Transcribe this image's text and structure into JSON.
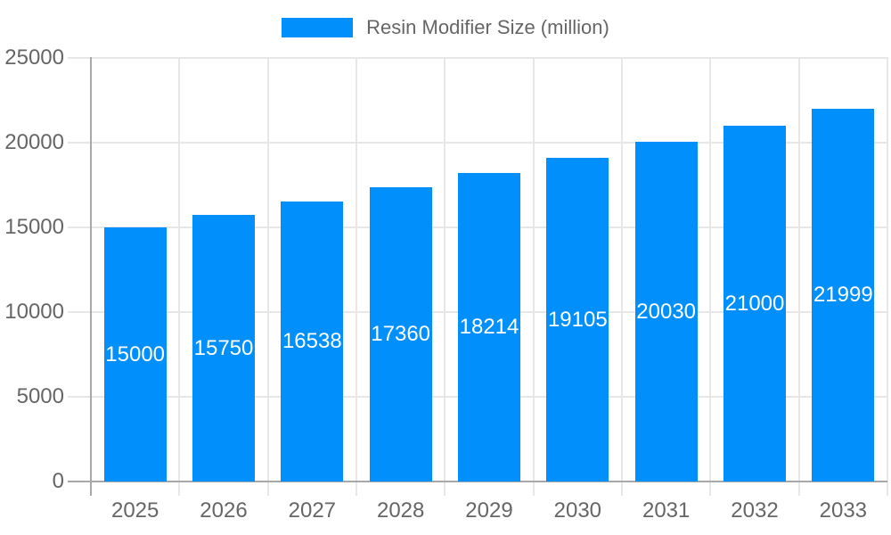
{
  "legend": {
    "label": "Resin Modifier Size (million)"
  },
  "colors": {
    "bar": "#008FFB",
    "axis_text": "#666666",
    "value_label": "#FFFFFF",
    "gridline": "#E7E7E7",
    "axis_border": "#A8A8A8",
    "background": "#FFFFFF"
  },
  "chart_data": {
    "type": "bar",
    "title": "",
    "xlabel": "",
    "ylabel": "",
    "series_name": "Resin Modifier Size (million)",
    "categories": [
      "2025",
      "2026",
      "2027",
      "2028",
      "2029",
      "2030",
      "2031",
      "2032",
      "2033"
    ],
    "values": [
      15000,
      15750,
      16538,
      17360,
      18214,
      19105,
      20030,
      21000,
      21999
    ],
    "value_labels_shown": [
      15000,
      15750,
      16538,
      17360,
      18214,
      19105,
      20030,
      21000,
      21999
    ],
    "ylim": [
      0,
      25000
    ],
    "yticks": [
      0,
      5000,
      10000,
      15000,
      20000,
      25000
    ],
    "grid": true,
    "legend_position": "top",
    "value_label_position": "inside-center"
  }
}
